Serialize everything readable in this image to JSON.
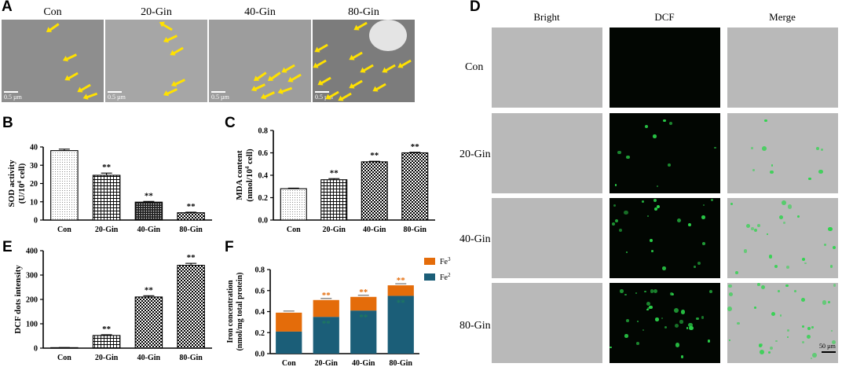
{
  "panels": {
    "A": {
      "label": "A",
      "images": [
        {
          "label": "Con",
          "scale": "0.5 µm",
          "arrows": 5
        },
        {
          "label": "20-Gin",
          "scale": "0.5 µm",
          "arrows": 5
        },
        {
          "label": "40-Gin",
          "scale": "0.5 µm",
          "arrows": 7
        },
        {
          "label": "80-Gin",
          "scale": "0.5 µm",
          "arrows": 12
        }
      ]
    },
    "B": {
      "label": "B"
    },
    "C": {
      "label": "C"
    },
    "D": {
      "label": "D",
      "columns": [
        "Bright",
        "DCF",
        "Merge"
      ],
      "rows": [
        "Con",
        "20-Gin",
        "40-Gin",
        "80-Gin"
      ],
      "scale_bar": "50 µm"
    },
    "E": {
      "label": "E"
    },
    "F": {
      "label": "F"
    }
  },
  "colors": {
    "fe3": "#e46c0a",
    "fe2": "#1b5e78",
    "arrow": "#ffe100",
    "fluor": "#2bd44a"
  },
  "chart_data": [
    {
      "id": "B",
      "type": "bar",
      "categories": [
        "Con",
        "20-Gin",
        "40-Gin",
        "80-Gin"
      ],
      "values": [
        38,
        24.5,
        9.8,
        4
      ],
      "errors": [
        0.8,
        1.2,
        0.4,
        0.3
      ],
      "significance": [
        "",
        "**",
        "**",
        "**"
      ],
      "patterns": [
        "dots",
        "grid",
        "dense",
        "check"
      ],
      "ylabel_line1": "SOD activity",
      "ylabel_line2": "(U/10",
      "ylabel_sup": "4",
      "ylabel_tail": " cell)",
      "ylim": [
        0,
        40
      ],
      "yticks": [
        "0",
        "10",
        "20",
        "30",
        "40"
      ]
    },
    {
      "id": "C",
      "type": "bar",
      "categories": [
        "Con",
        "20-Gin",
        "40-Gin",
        "80-Gin"
      ],
      "values": [
        0.28,
        0.36,
        0.52,
        0.6
      ],
      "errors": [
        0.005,
        0.01,
        0.005,
        0.005
      ],
      "significance": [
        "",
        "**",
        "**",
        "**"
      ],
      "patterns": [
        "dots",
        "grid",
        "check",
        "check"
      ],
      "ylabel_line1": "MDA content",
      "ylabel_line2": "(nmol/10",
      "ylabel_sup": "4",
      "ylabel_tail": " cell)",
      "ylim": [
        0,
        0.8
      ],
      "yticks": [
        "0.0",
        "0.2",
        "0.4",
        "0.6",
        "0.8"
      ]
    },
    {
      "id": "E",
      "type": "bar",
      "categories": [
        "Con",
        "20-Gin",
        "40-Gin",
        "80-Gin"
      ],
      "values": [
        2,
        52,
        210,
        340
      ],
      "errors": [
        0.5,
        3,
        5,
        8
      ],
      "significance": [
        "",
        "**",
        "**",
        "**"
      ],
      "patterns": [
        "dots",
        "grid",
        "check",
        "check"
      ],
      "ylabel_line1": "DCF dots intensity",
      "ylim": [
        0,
        400
      ],
      "yticks": [
        "0",
        "100",
        "200",
        "300",
        "400"
      ]
    },
    {
      "id": "F",
      "type": "stacked-bar",
      "categories": [
        "Con",
        "20-Gin",
        "40-Gin",
        "80-Gin"
      ],
      "series": [
        {
          "name": "Fe",
          "sup": "2−",
          "values": [
            0.21,
            0.35,
            0.41,
            0.55
          ],
          "significance": [
            "",
            "**",
            "**",
            "**"
          ]
        },
        {
          "name": "Fe",
          "sup": "3−",
          "values": [
            0.18,
            0.16,
            0.13,
            0.1
          ],
          "significance": [
            "",
            "**",
            "**",
            "**"
          ]
        }
      ],
      "ylabel_line1": "Iron concentration",
      "ylabel_line2": "(nmol/mg total protein)",
      "ylim": [
        0,
        0.8
      ],
      "yticks": [
        "0.0",
        "0.2",
        "0.4",
        "0.6",
        "0.8"
      ]
    }
  ]
}
